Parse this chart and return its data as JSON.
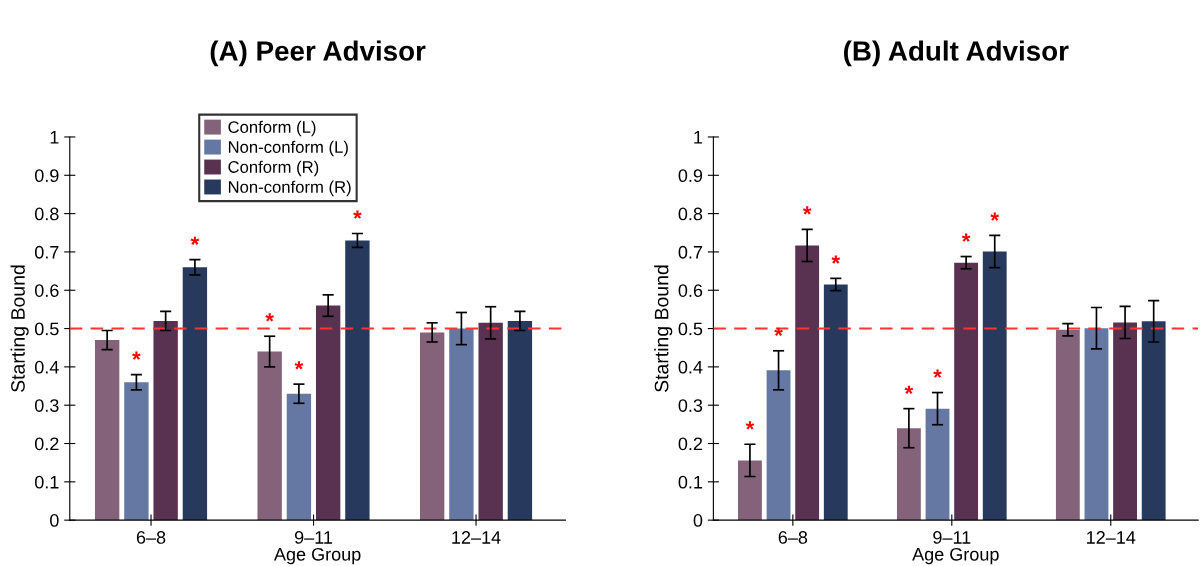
{
  "chart_data": [
    {
      "type": "bar",
      "title": "(A) Peer Advisor",
      "xlabel": "Age Group",
      "ylabel": "Starting Bound",
      "categories": [
        "6–8",
        "9–11",
        "12–14"
      ],
      "series": [
        {
          "name": "Conform (L)",
          "color": "#83627a",
          "values": [
            0.47,
            0.44,
            0.49
          ],
          "errors": [
            0.025,
            0.04,
            0.025
          ],
          "value_labels": [
            null,
            "*",
            null
          ]
        },
        {
          "name": "Non-conform (L)",
          "color": "#6478a3",
          "values": [
            0.36,
            0.33,
            0.5
          ],
          "errors": [
            0.02,
            0.025,
            0.042
          ],
          "value_labels": [
            "*",
            "*",
            null
          ]
        },
        {
          "name": "Conform (R)",
          "color": "#583250",
          "values": [
            0.52,
            0.56,
            0.515
          ],
          "errors": [
            0.025,
            0.028,
            0.042
          ],
          "value_labels": [
            null,
            null,
            null
          ]
        },
        {
          "name": "Non-conform (R)",
          "color": "#273a5e",
          "values": [
            0.66,
            0.73,
            0.52
          ],
          "errors": [
            0.02,
            0.018,
            0.025
          ],
          "value_labels": [
            "*",
            "*",
            null
          ]
        }
      ],
      "ylim": [
        0,
        1
      ],
      "yticks": [
        0,
        0.1,
        0.2,
        0.3,
        0.4,
        0.5,
        0.6,
        0.7,
        0.8,
        0.9,
        1
      ],
      "ref_lines": [
        {
          "axis": "y",
          "value": 0.5,
          "color": "#ff3333",
          "line_style": "dashed"
        }
      ],
      "legend": "top",
      "grid": false
    },
    {
      "type": "bar",
      "title": "(B) Adult Advisor",
      "xlabel": "Age Group",
      "ylabel": "Starting Bound",
      "categories": [
        "6–8",
        "9–11",
        "12–14"
      ],
      "series": [
        {
          "color": "#83627a",
          "values": [
            0.156,
            0.24,
            0.497
          ],
          "errors": [
            0.042,
            0.051,
            0.016
          ],
          "value_labels": [
            "*",
            "*",
            null
          ]
        },
        {
          "color": "#6478a3",
          "values": [
            0.391,
            0.291,
            0.501
          ],
          "errors": [
            0.051,
            0.042,
            0.054
          ],
          "value_labels": [
            "*",
            "*",
            null
          ]
        },
        {
          "color": "#583250",
          "values": [
            0.717,
            0.672,
            0.516
          ],
          "errors": [
            0.042,
            0.016,
            0.042
          ],
          "value_labels": [
            "*",
            "*",
            null
          ]
        },
        {
          "color": "#273a5e",
          "values": [
            0.615,
            0.701,
            0.519
          ],
          "errors": [
            0.016,
            0.042,
            0.054
          ],
          "value_labels": [
            "*",
            "*",
            null
          ]
        }
      ],
      "ylim": [
        0,
        1
      ],
      "yticks": [
        0,
        0.1,
        0.2,
        0.3,
        0.4,
        0.5,
        0.6,
        0.7,
        0.8,
        0.9,
        1
      ],
      "ref_lines": [
        {
          "axis": "y",
          "value": 0.5,
          "color": "#ff3333",
          "line_style": "dashed"
        }
      ],
      "grid": false
    }
  ]
}
